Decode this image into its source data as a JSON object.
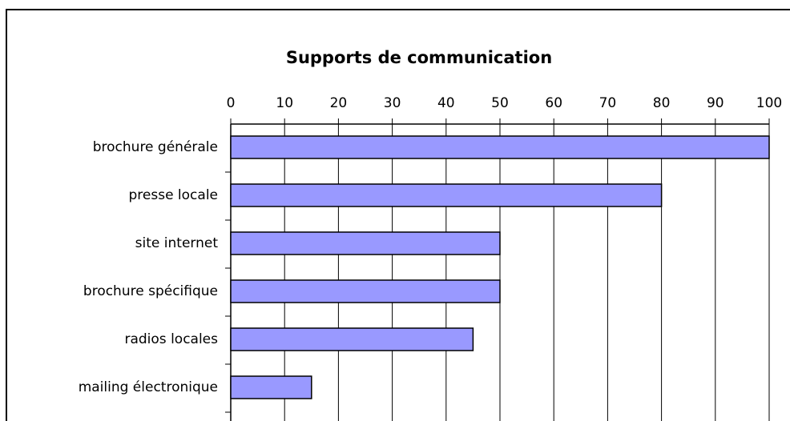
{
  "chart_data": {
    "type": "bar",
    "orientation": "horizontal",
    "title": "Supports de communication",
    "categories": [
      "brochure générale",
      "presse locale",
      "site internet",
      "brochure spécifique",
      "radios locales",
      "mailing électronique"
    ],
    "values": [
      100,
      80,
      50,
      50,
      45,
      15
    ],
    "color": "#9999ff",
    "xlim": [
      0,
      100
    ],
    "xticks": [
      0,
      10,
      20,
      30,
      40,
      50,
      60,
      70,
      80,
      90,
      100
    ],
    "grid": true
  }
}
